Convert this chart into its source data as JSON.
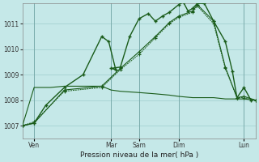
{
  "bg_color": "#c5e8e8",
  "grid_color": "#9ecece",
  "line_color": "#1a5c1a",
  "xlabel": "Pression niveau de la mer( hPa )",
  "ylim": [
    1006.5,
    1011.8
  ],
  "xlim": [
    0,
    100
  ],
  "yticks": [
    1007,
    1008,
    1009,
    1010,
    1011
  ],
  "xtick_positions": [
    5,
    38,
    50,
    67,
    95
  ],
  "xtick_labels": [
    "Ven",
    "Mar",
    "Sam",
    "Dim",
    "Lun"
  ],
  "vlines": [
    5,
    38,
    50,
    67,
    95
  ],
  "series_jagged_x": [
    0,
    5,
    10,
    18,
    26,
    34,
    37,
    40,
    38,
    42,
    46,
    50,
    54,
    57,
    60,
    63,
    67,
    69,
    71,
    73,
    75,
    78,
    82,
    87,
    90,
    92,
    95,
    98
  ],
  "series_jagged_y": [
    1007.0,
    1007.1,
    1007.8,
    1008.5,
    1009.0,
    1010.5,
    1010.3,
    1009.2,
    1009.25,
    1009.3,
    1010.5,
    1011.2,
    1011.4,
    1011.1,
    1011.3,
    1011.45,
    1011.75,
    1011.85,
    1011.5,
    1011.6,
    1011.8,
    1011.8,
    1011.1,
    1010.3,
    1009.15,
    1008.1,
    1008.5,
    1008.0
  ],
  "series_smooth1_x": [
    0,
    5,
    18,
    34,
    42,
    50,
    57,
    63,
    67,
    73,
    75,
    82,
    87,
    92,
    95,
    100
  ],
  "series_smooth1_y": [
    1007.0,
    1007.1,
    1008.4,
    1008.55,
    1009.25,
    1009.9,
    1010.5,
    1011.05,
    1011.3,
    1011.5,
    1011.75,
    1011.1,
    1009.3,
    1008.1,
    1008.15,
    1008.0
  ],
  "series_smooth2_x": [
    0,
    5,
    18,
    34,
    42,
    50,
    57,
    63,
    67,
    73,
    75,
    82,
    87,
    92,
    95,
    100
  ],
  "series_smooth2_y": [
    1007.0,
    1007.15,
    1008.35,
    1008.5,
    1009.2,
    1009.8,
    1010.45,
    1011.0,
    1011.25,
    1011.45,
    1011.7,
    1011.0,
    1009.25,
    1008.1,
    1008.1,
    1008.0
  ],
  "series_flat_x": [
    0,
    5,
    12,
    18,
    25,
    34,
    38,
    42,
    50,
    57,
    63,
    67,
    73,
    75,
    82,
    87,
    90,
    95,
    100
  ],
  "series_flat_y": [
    1007.0,
    1008.5,
    1008.5,
    1008.55,
    1008.55,
    1008.55,
    1008.4,
    1008.35,
    1008.3,
    1008.25,
    1008.2,
    1008.15,
    1008.1,
    1008.1,
    1008.1,
    1008.05,
    1008.05,
    1008.05,
    1008.0
  ]
}
